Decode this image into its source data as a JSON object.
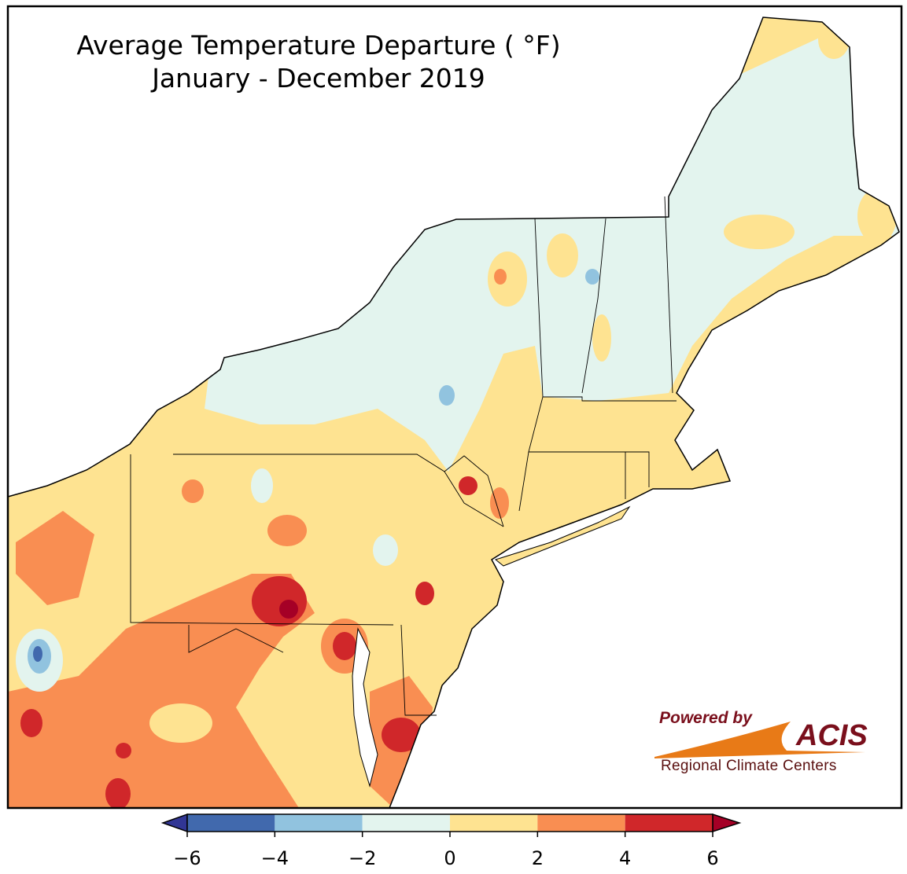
{
  "title": "Average Temperature Departure ( °F)",
  "subtitle": "January - December 2019",
  "colorbar": {
    "ticks": [
      "−6",
      "−4",
      "−2",
      "0",
      "2",
      "4",
      "6"
    ],
    "colors": [
      "#4169ad",
      "#91c3df",
      "#e3f4ee",
      "#fee391",
      "#f98e52",
      "#d0272a"
    ],
    "under_color": "#313695",
    "over_color": "#a50026"
  },
  "logo": {
    "powered_by": "Powered by",
    "acis": "ACIS",
    "rcc": "Regional Climate Centers"
  }
}
